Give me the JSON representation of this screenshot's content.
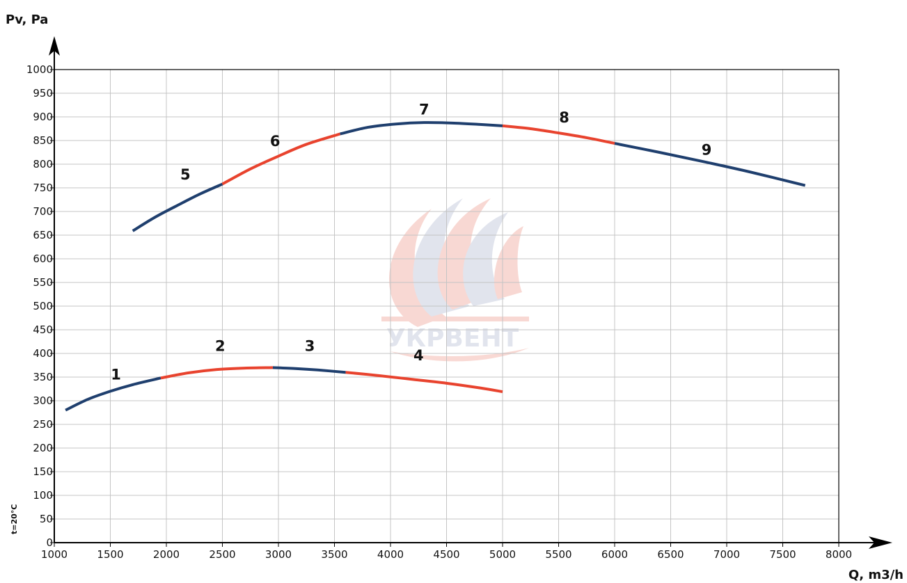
{
  "chart_data": {
    "type": "line",
    "xlabel": "Q, m3/h",
    "ylabel": "Pv, Pa",
    "xlim": [
      1000,
      8000
    ],
    "ylim": [
      0,
      1000
    ],
    "x_ticks": [
      1000,
      1500,
      2000,
      2500,
      3000,
      3500,
      4000,
      4500,
      5000,
      5500,
      6000,
      6500,
      7000,
      7500,
      8000
    ],
    "y_ticks": [
      0,
      50,
      100,
      150,
      200,
      250,
      300,
      350,
      400,
      450,
      500,
      550,
      600,
      650,
      700,
      750,
      800,
      850,
      900,
      950,
      1000
    ],
    "grid": true,
    "note": "t=20°C",
    "watermark": "УКРВЕНТ",
    "colors": {
      "blue": "#1f3f6e",
      "red": "#e8432e",
      "grid": "#c4c4c4"
    },
    "series": [
      {
        "name": "1",
        "color": "#1f3f6e",
        "label_pos": [
          1550,
          345
        ],
        "x": [
          1100,
          1300,
          1500,
          1700,
          1950
        ],
        "y": [
          280,
          303,
          320,
          334,
          348
        ]
      },
      {
        "name": "2",
        "color": "#e8432e",
        "label_pos": [
          2480,
          405
        ],
        "x": [
          1950,
          2200,
          2450,
          2700,
          2950
        ],
        "y": [
          348,
          359,
          366,
          369,
          370
        ]
      },
      {
        "name": "3",
        "color": "#1f3f6e",
        "label_pos": [
          3280,
          405
        ],
        "x": [
          2950,
          3150,
          3350,
          3600
        ],
        "y": [
          370,
          368,
          365,
          360
        ]
      },
      {
        "name": "4",
        "color": "#e8432e",
        "label_pos": [
          4250,
          385
        ],
        "x": [
          3600,
          3900,
          4200,
          4500,
          4800,
          5000
        ],
        "y": [
          360,
          353,
          345,
          337,
          327,
          319
        ]
      },
      {
        "name": "5",
        "color": "#1f3f6e",
        "label_pos": [
          2170,
          768
        ],
        "x": [
          1700,
          1900,
          2100,
          2300,
          2500
        ],
        "y": [
          659,
          688,
          713,
          737,
          758
        ]
      },
      {
        "name": "6",
        "color": "#e8432e",
        "label_pos": [
          2970,
          838
        ],
        "x": [
          2500,
          2750,
          3000,
          3250,
          3550
        ],
        "y": [
          758,
          790,
          817,
          842,
          864
        ]
      },
      {
        "name": "7",
        "color": "#1f3f6e",
        "label_pos": [
          4300,
          905
        ],
        "x": [
          3550,
          3800,
          4050,
          4300,
          4550,
          4800,
          5000
        ],
        "y": [
          864,
          878,
          885,
          888,
          887,
          884,
          881
        ]
      },
      {
        "name": "8",
        "color": "#e8432e",
        "label_pos": [
          5550,
          888
        ],
        "x": [
          5000,
          5250,
          5500,
          5750,
          6000
        ],
        "y": [
          881,
          875,
          866,
          856,
          844
        ]
      },
      {
        "name": "9",
        "color": "#1f3f6e",
        "label_pos": [
          6820,
          820
        ],
        "x": [
          6000,
          6400,
          6800,
          7200,
          7700
        ],
        "y": [
          844,
          825,
          805,
          784,
          755
        ]
      }
    ]
  }
}
